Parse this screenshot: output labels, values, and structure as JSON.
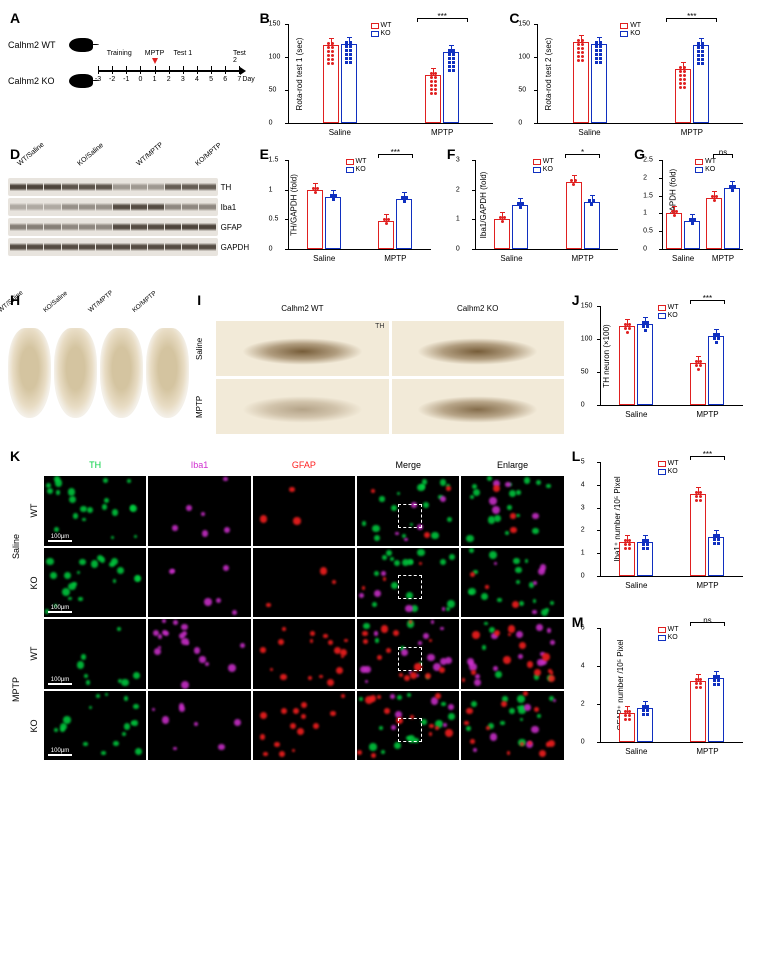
{
  "colors": {
    "wt": "#e02020",
    "ko": "#1030c0",
    "th_green": "#00d040",
    "iba1_mag": "#d030d0",
    "gfap_red": "#ff2020",
    "dapi": "#2040ff"
  },
  "panelA": {
    "label": "A",
    "genotypes": [
      "Calhm2 WT",
      "Calhm2 KO"
    ],
    "days": [
      -3,
      -2,
      -1,
      0,
      1,
      2,
      3,
      4,
      5,
      6,
      7
    ],
    "axis_label": "Day",
    "annotations": [
      {
        "text": "Training",
        "pos_day": -1.5
      },
      {
        "text": "MPTP",
        "pos_day": 1,
        "arrow": true
      },
      {
        "text": "Test 1",
        "pos_day": 3
      },
      {
        "text": "Test 2",
        "pos_day": 7
      }
    ]
  },
  "legend": {
    "wt": "WT",
    "ko": "KO"
  },
  "panelB": {
    "label": "B",
    "ylabel": "Rota-rod test 1 (sec)",
    "ymax": 150,
    "ytick_step": 50,
    "groups": [
      "Saline",
      "MPTP"
    ],
    "series": {
      "Saline": {
        "WT": 118,
        "KO": 120
      },
      "MPTP": {
        "WT": 72,
        "KO": 108
      }
    },
    "sig": {
      "MPTP": "***"
    },
    "n_points": 12
  },
  "panelC": {
    "label": "C",
    "ylabel": "Rota-rod test 2 (sec)",
    "ymax": 150,
    "ytick_step": 50,
    "groups": [
      "Saline",
      "MPTP"
    ],
    "series": {
      "Saline": {
        "WT": 122,
        "KO": 120
      },
      "MPTP": {
        "WT": 82,
        "KO": 118
      }
    },
    "sig": {
      "MPTP": "***"
    },
    "n_points": 12
  },
  "panelD": {
    "label": "D",
    "lane_headers": [
      "WT/Saline",
      "KO/Saline",
      "WT/MPTP",
      "KO/MPTP"
    ],
    "replicates": 3,
    "rows": [
      "TH",
      "Iba1",
      "GFAP",
      "GAPDH"
    ],
    "intensity": {
      "TH": [
        0.95,
        0.95,
        0.95,
        0.85,
        0.85,
        0.85,
        0.45,
        0.45,
        0.45,
        0.8,
        0.8,
        0.8
      ],
      "Iba1": [
        0.35,
        0.35,
        0.35,
        0.5,
        0.5,
        0.5,
        0.9,
        0.9,
        0.9,
        0.55,
        0.55,
        0.55
      ],
      "GFAP": [
        0.6,
        0.6,
        0.6,
        0.55,
        0.55,
        0.55,
        0.9,
        0.9,
        0.9,
        0.95,
        0.95,
        0.95
      ],
      "GAPDH": [
        0.9,
        0.9,
        0.9,
        0.9,
        0.9,
        0.9,
        0.9,
        0.9,
        0.9,
        0.9,
        0.9,
        0.9
      ]
    }
  },
  "panelE": {
    "label": "E",
    "ylabel": "TH/GAPDH (fold)",
    "ymax": 1.5,
    "ytick_step": 0.5,
    "groups": [
      "Saline",
      "MPTP"
    ],
    "series": {
      "Saline": {
        "WT": 1.0,
        "KO": 0.87
      },
      "MPTP": {
        "WT": 0.48,
        "KO": 0.84
      }
    },
    "sig": {
      "MPTP": "***"
    },
    "n_points": 3
  },
  "panelF": {
    "label": "F",
    "ylabel": "Iba1/GAPDH (fold)",
    "ymax": 3,
    "ytick_step": 1,
    "groups": [
      "Saline",
      "MPTP"
    ],
    "series": {
      "Saline": {
        "WT": 1.0,
        "KO": 1.5
      },
      "MPTP": {
        "WT": 2.25,
        "KO": 1.6
      }
    },
    "sig": {
      "MPTP": "*"
    },
    "n_points": 3
  },
  "panelG": {
    "label": "G",
    "ylabel": "GFAP/GAPDH (fold)",
    "ymax": 2.5,
    "ytick_step": 0.5,
    "groups": [
      "Saline",
      "MPTP"
    ],
    "series": {
      "Saline": {
        "WT": 1.0,
        "KO": 0.78
      },
      "MPTP": {
        "WT": 1.42,
        "KO": 1.72
      }
    },
    "sig": {
      "MPTP": "ns"
    },
    "n_points": 3
  },
  "panelH": {
    "label": "H",
    "headers": [
      "WT/Saline",
      "KO/Saline",
      "WT/MPTP",
      "KO/MPTP"
    ]
  },
  "panelI": {
    "label": "I",
    "cols": [
      "Calhm2 WT",
      "Calhm2 KO"
    ],
    "rows": [
      "Saline",
      "MPTP"
    ],
    "marker": "TH",
    "stain_density": {
      "Saline_WT": 0.9,
      "Saline_KO": 0.9,
      "MPTP_WT": 0.45,
      "MPTP_KO": 0.8
    }
  },
  "panelJ": {
    "label": "J",
    "ylabel": "TH neuron (×100)",
    "ymax": 150,
    "ytick_step": 50,
    "groups": [
      "Saline",
      "MPTP"
    ],
    "series": {
      "Saline": {
        "WT": 120,
        "KO": 122
      },
      "MPTP": {
        "WT": 63,
        "KO": 105
      }
    },
    "sig": {
      "MPTP": "***"
    },
    "n_points": 5
  },
  "panelK": {
    "label": "K",
    "col_labels": [
      "TH",
      "Iba1",
      "GFAP",
      "Merge",
      "Enlarge"
    ],
    "col_colors": [
      "#00d040",
      "#d030d0",
      "#ff2020",
      "#ffffff",
      "#ffffff"
    ],
    "row_outer": [
      "Saline",
      "MPTP"
    ],
    "row_inner": [
      "WT",
      "KO"
    ],
    "scale_bar": "100μm",
    "signal": {
      "Saline_WT": {
        "TH": 0.95,
        "Iba1": 0.25,
        "GFAP": 0.15
      },
      "Saline_KO": {
        "TH": 0.95,
        "Iba1": 0.25,
        "GFAP": 0.15
      },
      "MPTP_WT": {
        "TH": 0.35,
        "Iba1": 0.85,
        "GFAP": 0.75
      },
      "MPTP_KO": {
        "TH": 0.75,
        "Iba1": 0.35,
        "GFAP": 0.7
      }
    }
  },
  "panelL": {
    "label": "L",
    "ylabel": "Iba1⁺ number /10⁵ Pixel",
    "ymax": 5,
    "ytick_step": 1,
    "groups": [
      "Saline",
      "MPTP"
    ],
    "series": {
      "Saline": {
        "WT": 1.5,
        "KO": 1.5
      },
      "MPTP": {
        "WT": 3.6,
        "KO": 1.7
      }
    },
    "sig": {
      "MPTP": "***"
    },
    "n_points": 6
  },
  "panelM": {
    "label": "M",
    "ylabel": "GFAP⁺ number /10⁵ Pixel",
    "ymax": 6,
    "ytick_step": 2,
    "groups": [
      "Saline",
      "MPTP"
    ],
    "series": {
      "Saline": {
        "WT": 1.55,
        "KO": 1.8
      },
      "MPTP": {
        "WT": 3.2,
        "KO": 3.35
      }
    },
    "sig": {
      "MPTP": "ns"
    },
    "n_points": 6
  }
}
